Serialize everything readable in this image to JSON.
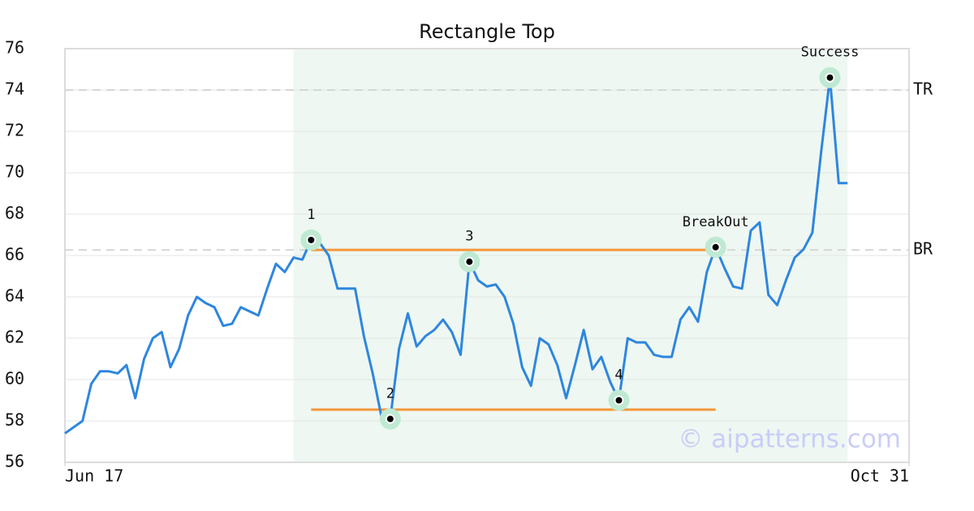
{
  "chart_data": {
    "type": "line",
    "title": "Rectangle Top",
    "color": "#2e86de",
    "x": [
      0,
      1,
      2,
      3,
      4,
      5,
      6,
      7,
      8,
      9,
      10,
      11,
      12,
      13,
      14,
      15,
      16,
      17,
      18,
      19,
      20,
      21,
      22,
      23,
      24,
      25,
      26,
      27,
      28,
      29,
      30,
      31,
      32,
      33,
      34,
      35,
      36,
      37,
      38,
      39,
      40,
      41,
      42,
      43,
      44,
      45,
      46,
      47,
      48,
      49,
      50,
      51,
      52,
      53,
      54,
      55,
      56,
      57,
      58,
      59,
      60,
      61,
      62,
      63,
      64,
      65,
      66,
      67,
      68,
      69,
      70,
      71,
      72,
      73,
      74,
      75,
      76,
      77,
      78,
      79,
      80,
      81,
      82,
      83,
      84,
      85,
      86,
      87,
      88,
      89
    ],
    "values": [
      57.4,
      57.7,
      58.0,
      59.8,
      60.4,
      60.4,
      60.3,
      60.7,
      59.1,
      61.0,
      62.0,
      62.3,
      60.6,
      61.5,
      63.1,
      64.0,
      63.7,
      63.5,
      62.6,
      62.7,
      63.5,
      63.3,
      63.1,
      64.4,
      65.6,
      65.2,
      65.9,
      65.8,
      66.75,
      66.6,
      66.0,
      64.4,
      64.4,
      64.4,
      62.1,
      60.3,
      58.2,
      58.1,
      61.5,
      63.2,
      61.6,
      62.1,
      62.4,
      62.9,
      62.3,
      61.2,
      65.7,
      64.8,
      64.5,
      64.6,
      64.0,
      62.7,
      60.6,
      59.7,
      62.0,
      61.7,
      60.7,
      59.1,
      60.7,
      62.4,
      60.5,
      61.1,
      59.9,
      59.0,
      62.0,
      61.8,
      61.8,
      61.2,
      61.1,
      61.1,
      62.9,
      63.5,
      62.8,
      65.2,
      66.4,
      65.4,
      64.5,
      64.4,
      67.2,
      67.6,
      64.1,
      63.6,
      64.8,
      65.9,
      66.3,
      67.1,
      71.0,
      74.6,
      69.5,
      69.5
    ],
    "xlim": [
      0,
      96
    ],
    "xticks": [
      {
        "value": 0,
        "label": "Jun 17"
      },
      {
        "value": 96,
        "label": "Oct 31"
      }
    ],
    "ylim": [
      56,
      76
    ],
    "yticks": [
      56,
      58,
      60,
      62,
      64,
      66,
      68,
      70,
      72,
      74,
      76
    ],
    "grid": true,
    "shaded_xrange": [
      26,
      89
    ],
    "shade_color": "#eef7f2",
    "levels": [
      {
        "label": "TR",
        "value": 74
      },
      {
        "label": "BR",
        "value": 66.27
      }
    ],
    "pattern_lines": [
      {
        "value": 66.27,
        "x": [
          28,
          74
        ]
      },
      {
        "value": 58.55,
        "x": [
          28,
          74
        ]
      }
    ],
    "pattern_color": "#f5973a",
    "points": [
      {
        "label": "1",
        "x": 28,
        "y": 66.75
      },
      {
        "label": "2",
        "x": 37,
        "y": 58.1
      },
      {
        "label": "3",
        "x": 46,
        "y": 65.7
      },
      {
        "label": "4",
        "x": 63,
        "y": 59.0
      },
      {
        "label": "BreakOut",
        "x": 74,
        "y": 66.4
      },
      {
        "label": "Success",
        "x": 87,
        "y": 74.6
      }
    ],
    "watermark": "© aipatterns.com"
  }
}
